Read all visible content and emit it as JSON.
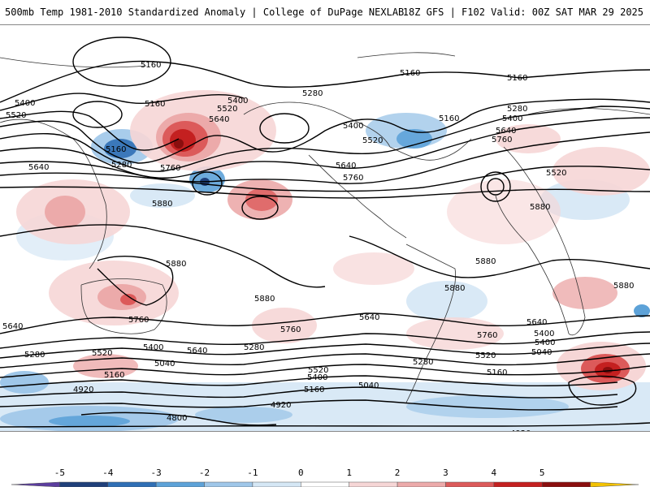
{
  "header": {
    "title": "500mb Temp 1981-2010 Standardized Anomaly | College of DuPage NEXLAB",
    "run_info": "18Z GFS | F102 Valid: 00Z SAT MAR 29 2025"
  },
  "map": {
    "contour_labels": [
      {
        "id": "a1",
        "text": "5160"
      },
      {
        "id": "a2",
        "text": "5160"
      },
      {
        "id": "a3",
        "text": "5160"
      },
      {
        "id": "a4",
        "text": "5160"
      },
      {
        "id": "a5",
        "text": "5400"
      },
      {
        "id": "a6",
        "text": "5520"
      },
      {
        "id": "a7",
        "text": "5400"
      },
      {
        "id": "a8",
        "text": "5520"
      },
      {
        "id": "a9",
        "text": "5640"
      },
      {
        "id": "a10",
        "text": "5160"
      },
      {
        "id": "a11",
        "text": "5280"
      },
      {
        "id": "a12",
        "text": "5640"
      },
      {
        "id": "a13",
        "text": "5760"
      },
      {
        "id": "a14",
        "text": "5280"
      },
      {
        "id": "a15",
        "text": "5400"
      },
      {
        "id": "a16",
        "text": "5520"
      },
      {
        "id": "a17",
        "text": "5640"
      },
      {
        "id": "a18",
        "text": "5760"
      },
      {
        "id": "a19",
        "text": "5160"
      },
      {
        "id": "a20",
        "text": "5280"
      },
      {
        "id": "a21",
        "text": "5400"
      },
      {
        "id": "a22",
        "text": "5640"
      },
      {
        "id": "a23",
        "text": "5760"
      },
      {
        "id": "a24",
        "text": "5520"
      },
      {
        "id": "a25",
        "text": "5880"
      },
      {
        "id": "a26",
        "text": "5880"
      },
      {
        "id": "a27",
        "text": "5880"
      },
      {
        "id": "a28",
        "text": "5880"
      },
      {
        "id": "a29",
        "text": "5880"
      },
      {
        "id": "a30",
        "text": "5880"
      },
      {
        "id": "a31",
        "text": "5880"
      },
      {
        "id": "a32",
        "text": "5640"
      },
      {
        "id": "a33",
        "text": "5760"
      },
      {
        "id": "a34",
        "text": "5760"
      },
      {
        "id": "a35",
        "text": "5640"
      },
      {
        "id": "a36",
        "text": "5760"
      },
      {
        "id": "a37",
        "text": "5640"
      },
      {
        "id": "a38",
        "text": "5400"
      },
      {
        "id": "a39",
        "text": "5280"
      },
      {
        "id": "a40",
        "text": "5520"
      },
      {
        "id": "a41",
        "text": "5400"
      },
      {
        "id": "a42",
        "text": "5640"
      },
      {
        "id": "a43",
        "text": "5040"
      },
      {
        "id": "a44",
        "text": "5160"
      },
      {
        "id": "a45",
        "text": "4920"
      },
      {
        "id": "a46",
        "text": "5280"
      },
      {
        "id": "a47",
        "text": "5520"
      },
      {
        "id": "a48",
        "text": "5400"
      },
      {
        "id": "a49",
        "text": "5160"
      },
      {
        "id": "a50",
        "text": "5040"
      },
      {
        "id": "a51",
        "text": "5280"
      },
      {
        "id": "a52",
        "text": "5520"
      },
      {
        "id": "a53",
        "text": "5160"
      },
      {
        "id": "a54",
        "text": "5040"
      },
      {
        "id": "a55",
        "text": "5400"
      },
      {
        "id": "a56",
        "text": "4920"
      },
      {
        "id": "a57",
        "text": "4800"
      },
      {
        "id": "a58",
        "text": "4920"
      }
    ]
  },
  "colorbar": {
    "ticks": [
      "-5",
      "-4",
      "-3",
      "-2",
      "-1",
      "0",
      "1",
      "2",
      "3",
      "4",
      "5"
    ],
    "colors": [
      "#5b3d9e",
      "#1f3f7a",
      "#2f6fb5",
      "#5da2d8",
      "#9fc7e9",
      "#d5e7f5",
      "#ffffff",
      "#f6d6d6",
      "#ecaaaa",
      "#dc5a5a",
      "#c42020",
      "#8a0e0e",
      "#f3c200"
    ]
  }
}
